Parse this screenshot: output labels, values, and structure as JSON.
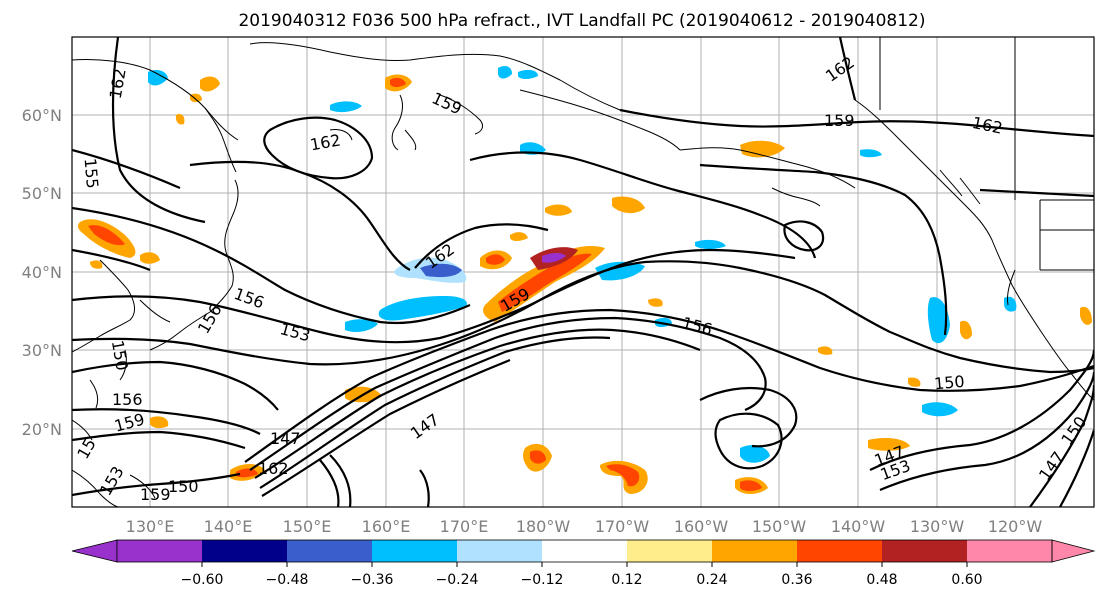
{
  "figure": {
    "title": "2019040312 F036 500 hPa refract., IVT Landfall PC (2019040612 - 2019040812)",
    "lon_labels": [
      "130°E",
      "140°E",
      "150°E",
      "160°E",
      "170°E",
      "180°W",
      "170°W",
      "160°W",
      "150°W",
      "140°W",
      "130°W",
      "120°W"
    ],
    "lat_labels": [
      "60°N",
      "50°N",
      "40°N",
      "30°N",
      "20°N"
    ],
    "contour_labels": [
      "162",
      "159",
      "162",
      "162",
      "162",
      "159",
      "162",
      "156",
      "153",
      "159",
      "156",
      "159",
      "147",
      "147",
      "150",
      "156",
      "150",
      "147",
      "150",
      "147",
      "153",
      "162",
      "159",
      "153",
      "150",
      "156",
      "155",
      "15"
    ]
  },
  "colorbar": {
    "colors": [
      "#9932cc",
      "#00008b",
      "#3a5fcd",
      "#00bfff",
      "#b0e2ff",
      "#ffffff",
      "#ffec8b",
      "#ffa500",
      "#ff4500",
      "#b22222",
      "#ff88aa"
    ],
    "tick_labels": [
      "−0.60",
      "−0.48",
      "−0.36",
      "−0.24",
      "−0.12",
      "0.12",
      "0.24",
      "0.36",
      "0.48",
      "0.60"
    ]
  }
}
